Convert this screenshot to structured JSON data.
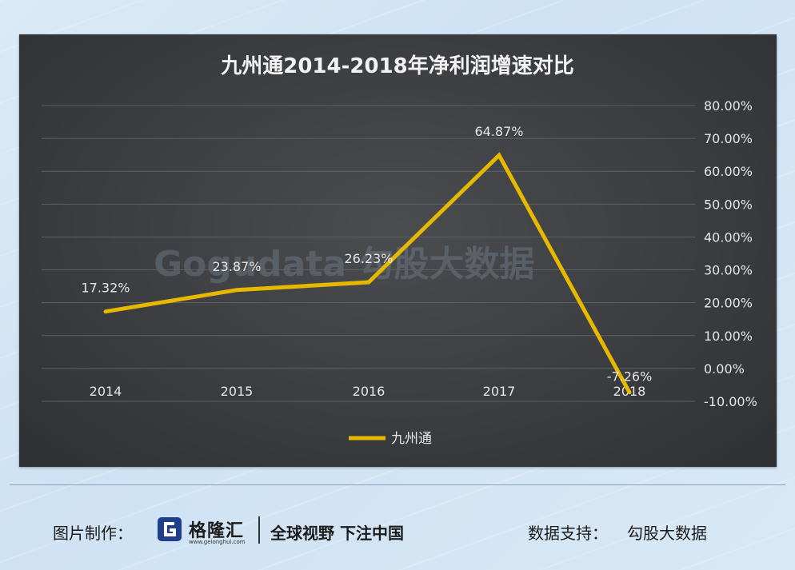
{
  "chart_data": {
    "type": "line",
    "title": "九州通2014-2018年净利润增速对比",
    "categories": [
      "2014",
      "2015",
      "2016",
      "2017",
      "2018"
    ],
    "series": [
      {
        "name": "九州通",
        "values": [
          17.32,
          23.87,
          26.23,
          64.87,
          -7.26
        ],
        "labels": [
          "17.32%",
          "23.87%",
          "26.23%",
          "64.87%",
          "-7.26%"
        ]
      }
    ],
    "y_axis": {
      "position": "right",
      "min": -10,
      "max": 80,
      "ticks": [
        "80.00%",
        "70.00%",
        "60.00%",
        "50.00%",
        "40.00%",
        "30.00%",
        "20.00%",
        "10.00%",
        "0.00%",
        "-10.00%"
      ]
    },
    "grid": true,
    "legend": "bottom",
    "series_color": "#e6b800"
  },
  "watermark": {
    "text": "Gogudata 勾股大数据"
  },
  "footer": {
    "credit_label": "图片制作：",
    "logo_name": "格隆汇",
    "logo_url": "www.gelonghui.com",
    "slogan": "全球视野 下注中国",
    "support_label": "数据支持：",
    "support_value": "勾股大数据"
  }
}
